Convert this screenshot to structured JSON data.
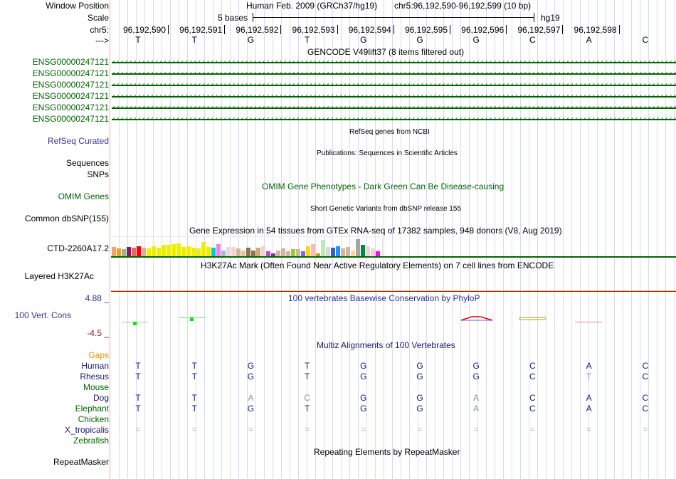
{
  "header": {
    "window_position_label": "Window Position",
    "scale_label": "Scale",
    "chrom_label": "chr5:",
    "strand_label": "--->",
    "assembly_title": "Human Feb. 2009 (GRCh37/hg19)",
    "position_range": "chr5:96,192,590-96,192,599 (10 bp)",
    "scale_text": "5 bases",
    "scale_db": "hg19"
  },
  "positions": [
    "96,192,590",
    "96,192,591",
    "96,192,592",
    "96,192,593",
    "96,192,594",
    "96,192,595",
    "96,192,596",
    "96,192,597",
    "96,192,598"
  ],
  "bases": [
    "T",
    "T",
    "G",
    "T",
    "G",
    "G",
    "G",
    "C",
    "A",
    "C"
  ],
  "tracks": {
    "gencode": {
      "title": "GENCODE V49lift37 (8 items filtered out)",
      "items": [
        "ENSG00000247121",
        "ENSG00000247121",
        "ENSG00000247121",
        "ENSG00000247121",
        "ENSG00000247121",
        "ENSG00000247121"
      ],
      "color": "#006400"
    },
    "refseq": {
      "label": "RefSeq Curated",
      "title": "RefSeq genes from NCBI"
    },
    "publications": {
      "label_line1": "Sequences",
      "label_line2": "SNPs",
      "title": "Publications: Sequences in Scientific Articles"
    },
    "omim": {
      "label": "OMIM Genes",
      "title": "OMIM Gene Phenotypes - Dark Green Can Be Disease-causing"
    },
    "dbsnp": {
      "label": "Common dbSNP(155)",
      "title": "Short Genetic Variants from dbSNP release 155"
    },
    "gtex": {
      "label": "CTD-2260A17.2",
      "title": "Gene Expression in 54 tissues from GTEx RNA-seq of 17382 samples, 948 donors (V8, Aug 2019)",
      "bars": [
        {
          "color": "#f4a460",
          "level": 0.55
        },
        {
          "color": "#f0a020",
          "level": 0.45
        },
        {
          "color": "#8fbc8f",
          "level": 0.4
        },
        {
          "color": "#8b1a5a",
          "level": 0.55
        },
        {
          "color": "#ee6a50",
          "level": 0.5
        },
        {
          "color": "#ff0000",
          "level": 0.6
        },
        {
          "color": "#cdb79e",
          "level": 0.5
        },
        {
          "color": "#eeee00",
          "level": 0.45
        },
        {
          "color": "#eeee00",
          "level": 0.6
        },
        {
          "color": "#eeee00",
          "level": 0.5
        },
        {
          "color": "#eeee00",
          "level": 0.65
        },
        {
          "color": "#eeee00",
          "level": 0.65
        },
        {
          "color": "#eeee00",
          "level": 0.7
        },
        {
          "color": "#eeee00",
          "level": 0.75
        },
        {
          "color": "#eeee00",
          "level": 0.55
        },
        {
          "color": "#eeee00",
          "level": 0.6
        },
        {
          "color": "#eeee00",
          "level": 0.5
        },
        {
          "color": "#eeee00",
          "level": 0.45
        },
        {
          "color": "#eeee00",
          "level": 0.85
        },
        {
          "color": "#eeee00",
          "level": 0.55
        },
        {
          "color": "#00ced1",
          "level": 0.5
        },
        {
          "color": "#ee82ee",
          "level": 0.7
        },
        {
          "color": "#9ac0cd",
          "level": 0.35
        },
        {
          "color": "#eed5d2",
          "level": 0.55
        },
        {
          "color": "#eed5d2",
          "level": 0.55
        },
        {
          "color": "#cdb79e",
          "level": 0.45
        },
        {
          "color": "#eec591",
          "level": 0.35
        },
        {
          "color": "#8b7355",
          "level": 0.5
        },
        {
          "color": "#8b7355",
          "level": 0.35
        },
        {
          "color": "#cdaa7d",
          "level": 0.5
        },
        {
          "color": "#eed5d2",
          "level": 0.6
        },
        {
          "color": "#b452cd",
          "level": 0.3
        },
        {
          "color": "#7a378b",
          "level": 0.15
        },
        {
          "color": "#cdb79e",
          "level": 0.35
        },
        {
          "color": "#cdb79e",
          "level": 0.45
        },
        {
          "color": "#cdb79e",
          "level": 0.3
        },
        {
          "color": "#9acd32",
          "level": 0.4
        },
        {
          "color": "#cdb79e",
          "level": 0.4
        },
        {
          "color": "#7b68ee",
          "level": 0.3
        },
        {
          "color": "#ffd700",
          "level": 0.6
        },
        {
          "color": "#ffb6c1",
          "level": 0.7
        },
        {
          "color": "#cd9b1d",
          "level": 0.15
        },
        {
          "color": "#b4eeb4",
          "level": 0.95
        },
        {
          "color": "#d9d9d9",
          "level": 0.55
        },
        {
          "color": "#3a5fcd",
          "level": 0.5
        },
        {
          "color": "#1e90ff",
          "level": 0.6
        },
        {
          "color": "#cdb79e",
          "level": 0.45
        },
        {
          "color": "#cdb79e",
          "level": 0.55
        },
        {
          "color": "#ffd39b",
          "level": 0.35
        },
        {
          "color": "#a6a6a6",
          "level": 1.0
        },
        {
          "color": "#008b45",
          "level": 0.65
        },
        {
          "color": "#eed5d2",
          "level": 0.6
        },
        {
          "color": "#eed5d2",
          "level": 0.45
        },
        {
          "color": "#ff00ff",
          "level": 0.3
        }
      ]
    },
    "h3k27ac": {
      "label": "Layered H3K27Ac",
      "title": "H3K27Ac Mark (Often Found Near Active Regulatory Elements) on 7 cell lines from ENCODE"
    },
    "phylop": {
      "label": "100 Vert. Cons",
      "title": "100 vertebrates Basewise Conservation by PhyloP",
      "max_label": "4.88 _",
      "min_label": "-4.5 _"
    },
    "multiz": {
      "title": "Multiz Alignments of 100 Vertebrates",
      "gaps_label": "Gaps",
      "species": [
        {
          "name": "Human",
          "color": "navy",
          "bases": [
            "T",
            "T",
            "G",
            "T",
            "G",
            "G",
            "G",
            "C",
            "A",
            "C"
          ],
          "diff": []
        },
        {
          "name": "Rhesus",
          "color": "navy",
          "bases": [
            "T",
            "T",
            "G",
            "T",
            "G",
            "G",
            "G",
            "C",
            "T",
            "C"
          ],
          "diff": [
            8
          ]
        },
        {
          "name": "Mouse",
          "color": "green",
          "bases": [],
          "diff": []
        },
        {
          "name": "Dog",
          "color": "navy",
          "bases": [
            "T",
            "T",
            "A",
            "C",
            "G",
            "G",
            "A",
            "C",
            "A",
            "C"
          ],
          "diff": [
            2,
            3,
            6
          ]
        },
        {
          "name": "Elephant",
          "color": "green",
          "bases": [
            "T",
            "T",
            "G",
            "T",
            "G",
            "G",
            "A",
            "C",
            "A",
            "C"
          ],
          "diff": [
            6
          ]
        },
        {
          "name": "Chicken",
          "color": "green",
          "bases": [],
          "diff": []
        },
        {
          "name": "X_tropicalis",
          "color": "navy",
          "bases": [
            "=",
            "=",
            "=",
            "=",
            "=",
            "=",
            "=",
            "=",
            "=",
            "="
          ],
          "diff": []
        },
        {
          "name": "Zebrafish",
          "color": "green",
          "bases": [],
          "diff": []
        }
      ]
    },
    "repeatmasker": {
      "label": "RepeatMasker",
      "title": "Repeating Elements by RepeatMasker"
    }
  }
}
